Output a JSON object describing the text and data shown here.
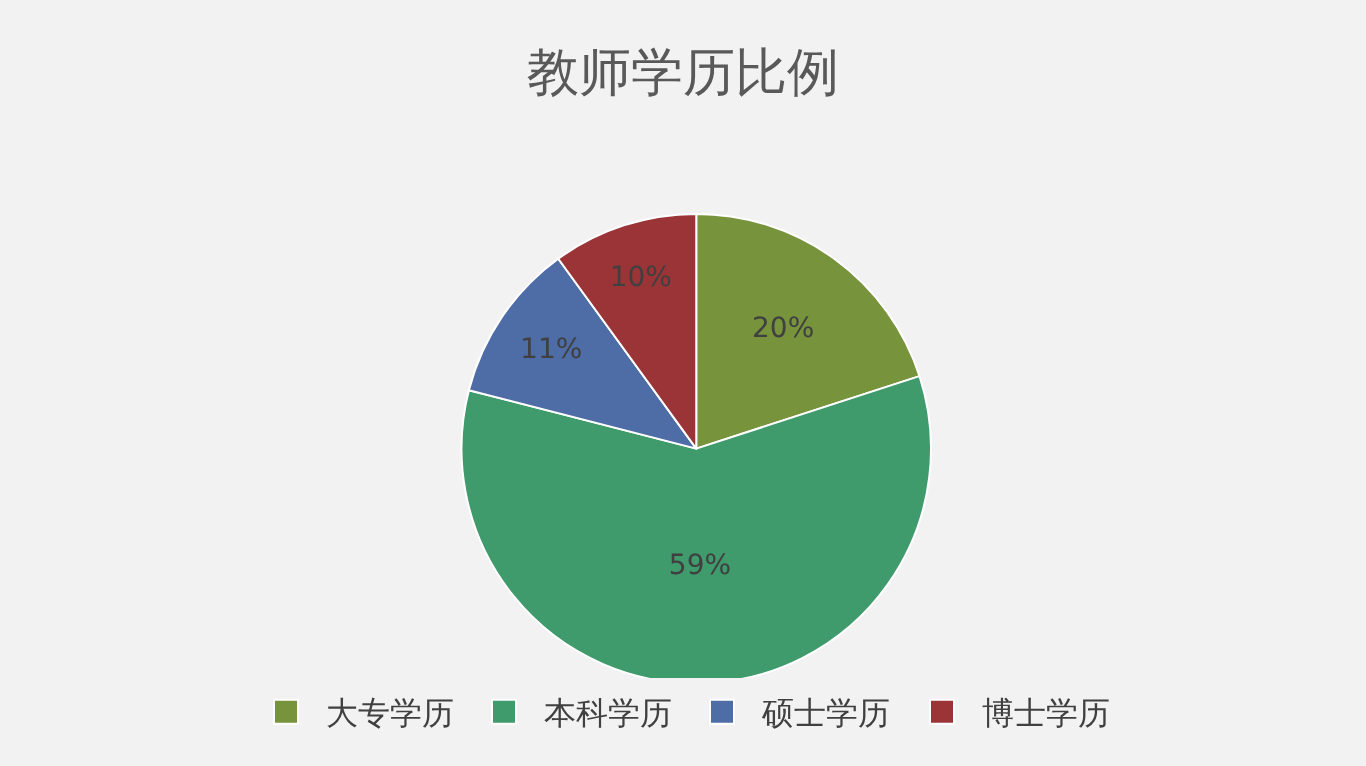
{
  "chart_data": {
    "type": "pie",
    "title": "教师学历比例",
    "categories": [
      "大专学历",
      "本科学历",
      "硕士学历",
      "博士学历"
    ],
    "values": [
      20,
      59,
      11,
      10
    ],
    "colors": [
      "#77933c",
      "#3f9a6c",
      "#4e6ca6",
      "#9b3436"
    ],
    "value_labels": [
      "20%",
      "59%",
      "11%",
      "10%"
    ],
    "legend": "bottom"
  }
}
